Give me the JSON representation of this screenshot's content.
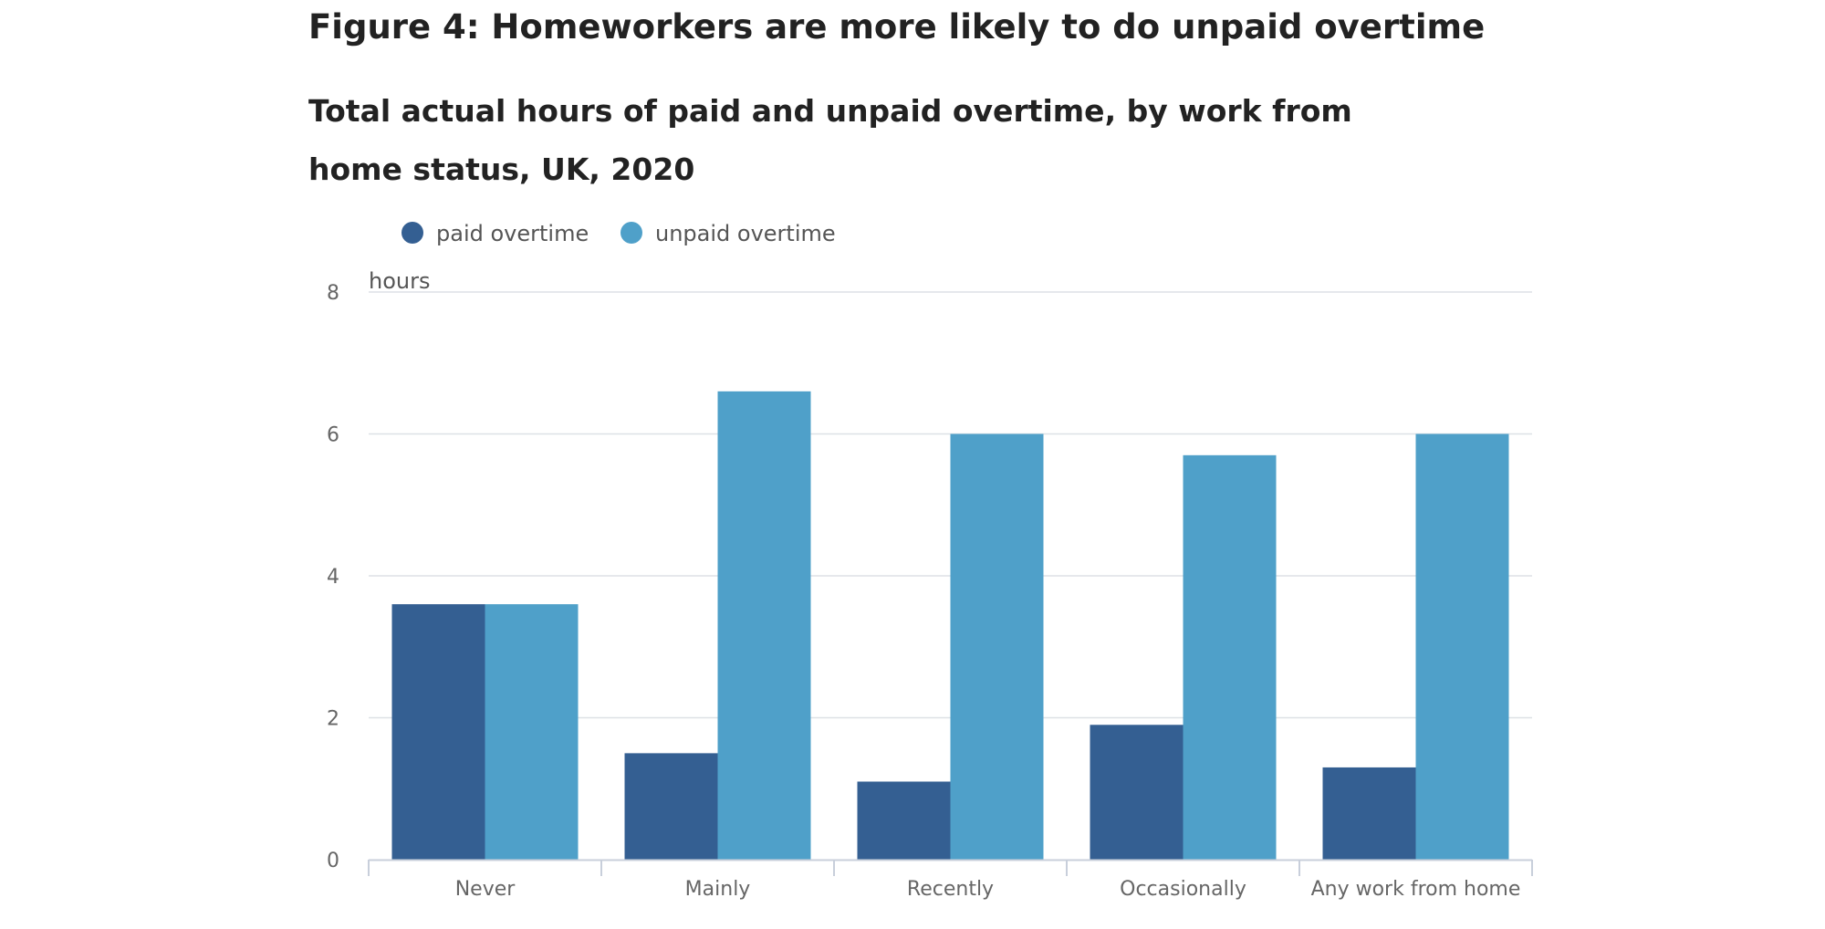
{
  "figure": {
    "title": "Figure 4: Homeworkers are more likely to do unpaid overtime",
    "subtitle": "Total actual hours of paid and unpaid overtime, by work from home status, UK, 2020"
  },
  "chart_data": {
    "type": "bar",
    "title": "Figure 4: Homeworkers are more likely to do unpaid overtime",
    "subtitle": "Total actual hours of paid and unpaid overtime, by work from home status, UK, 2020",
    "ylabel": "hours",
    "xlabel": "",
    "ylim": [
      0,
      8
    ],
    "yticks": [
      0,
      2,
      4,
      6,
      8
    ],
    "grid": true,
    "legend_position": "top-left",
    "categories": [
      "Never",
      "Mainly",
      "Recently",
      "Occasionally",
      "Any work from home"
    ],
    "series": [
      {
        "name": "paid overtime",
        "color": "#345f92",
        "values": [
          3.6,
          1.5,
          1.1,
          1.9,
          1.3
        ]
      },
      {
        "name": "unpaid overtime",
        "color": "#4fa0c9",
        "values": [
          3.6,
          6.6,
          6.0,
          5.7,
          6.0
        ]
      }
    ]
  }
}
